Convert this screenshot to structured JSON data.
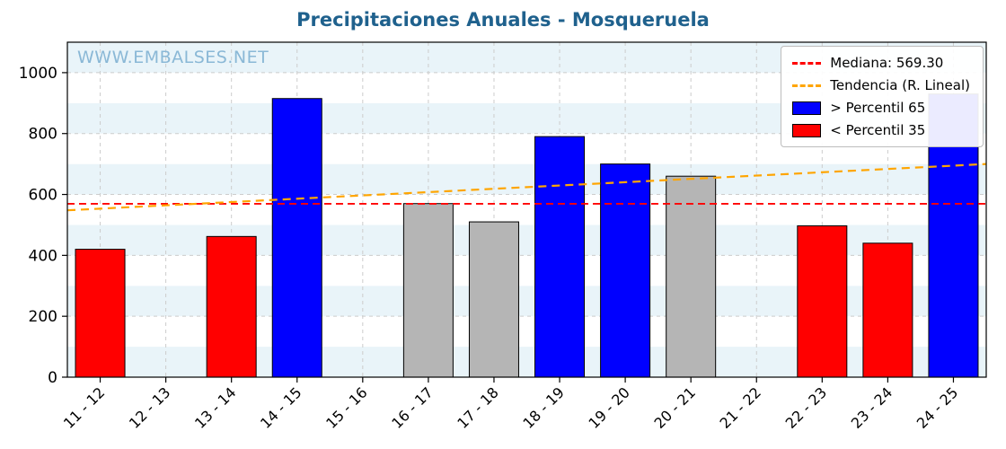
{
  "chart_data": {
    "type": "bar",
    "title": "Precipitaciones Anuales - Mosqueruela",
    "watermark": "WWW.EMBALSES.NET",
    "categories": [
      "11 - 12",
      "12 - 13",
      "13 - 14",
      "14 - 15",
      "15 - 16",
      "16 - 17",
      "17 - 18",
      "18 - 19",
      "19 - 20",
      "20 - 21",
      "21 - 22",
      "22 - 23",
      "23 - 24",
      "24 - 25"
    ],
    "values": [
      420,
      0,
      462,
      915,
      0,
      570,
      510,
      790,
      700,
      660,
      0,
      497,
      440,
      930
    ],
    "bar_classes": [
      "below",
      null,
      "below",
      "above",
      null,
      "mid",
      "mid",
      "above",
      "above",
      "mid",
      null,
      "below",
      "below",
      "above"
    ],
    "median": 569.3,
    "trend": {
      "start": 548,
      "end": 700
    },
    "ylim": [
      0,
      1100
    ],
    "yticks": [
      0,
      200,
      400,
      600,
      800,
      1000
    ],
    "grid": true,
    "legend": {
      "position": "upper right",
      "items": [
        {
          "label": "Mediana: 569.30",
          "type": "dashed-line",
          "color": "#ff0000"
        },
        {
          "label": "Tendencia (R. Lineal)",
          "type": "dashed-line",
          "color": "#ffa500"
        },
        {
          "label": "> Percentil 65",
          "type": "patch",
          "color": "#0000ff"
        },
        {
          "label": "< Percentil 35",
          "type": "patch",
          "color": "#ff0000"
        }
      ]
    },
    "colors": {
      "above": "#0000ff",
      "below": "#ff0000",
      "mid": "#b5b5b5",
      "median": "#ff0000",
      "trend": "#ffa500",
      "band": "#e9f4f9",
      "grid": "#cccccc",
      "frame": "#000000",
      "title": "#1f618d",
      "watermark": "#8ab8d6"
    }
  }
}
